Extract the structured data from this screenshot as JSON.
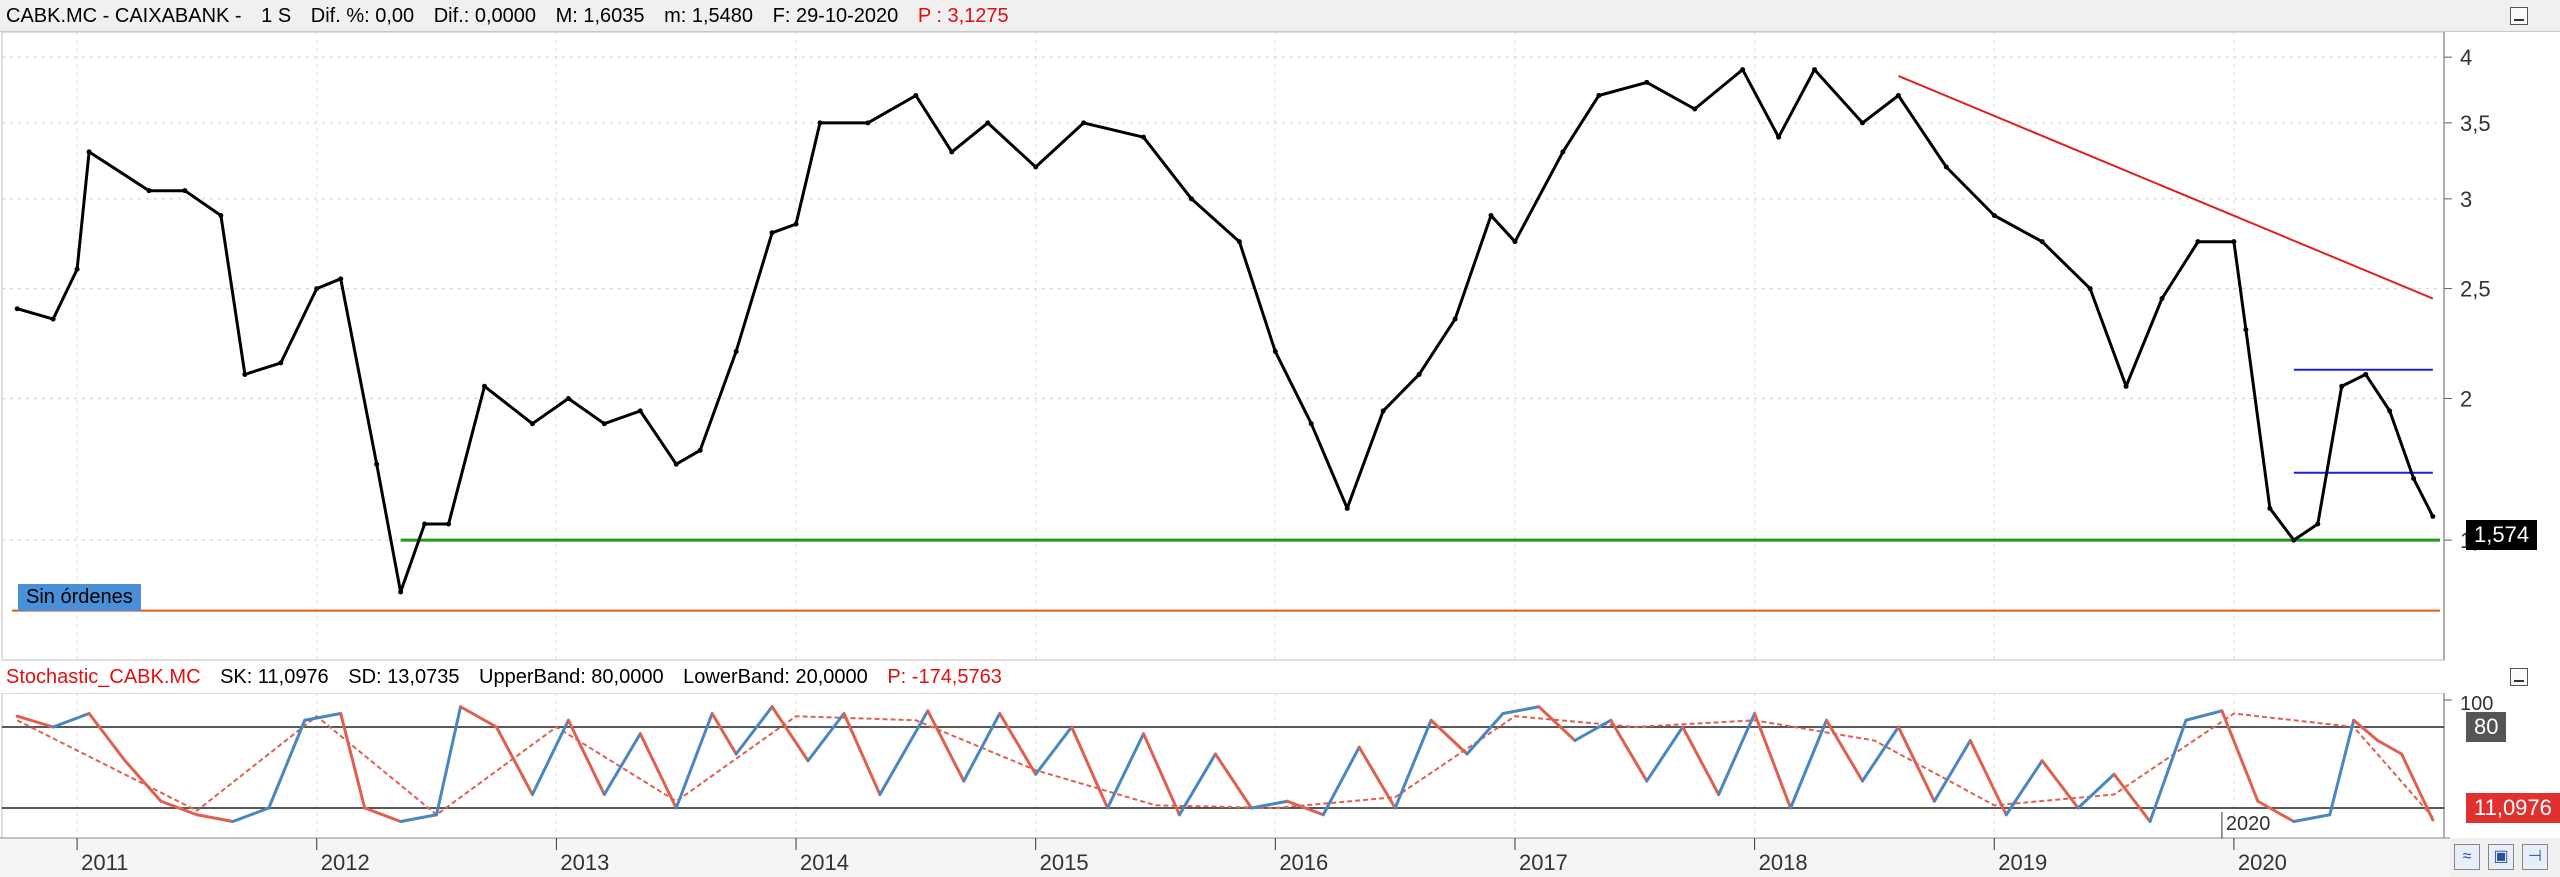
{
  "price_header": {
    "symbol": "CABK.MC - CAIXABANK -",
    "period": "1 S",
    "dif_pct": "Dif. %: 0,00",
    "dif": "Dif.: 0,0000",
    "max": "M: 1,6035",
    "min": "m: 1,5480",
    "date": "F: 29-10-2020",
    "pos": "P : 3,1275"
  },
  "stoch_header": {
    "name": "Stochastic_CABK.MC",
    "sk": "SK: 11,0976",
    "sd": "SD: 13,0735",
    "upper": "UpperBand: 80,0000",
    "lower": "LowerBand: 20,0000",
    "pos": "P: -174,5763"
  },
  "orders_label": "Sin órdenes",
  "last_price_tag": "1,574",
  "stoch_upper_tag": "80",
  "stoch_last_tag": "11,0976",
  "stoch_marker_label": "2020",
  "colors": {
    "price": "#000000",
    "trendline": "#e02020",
    "support": "#1a9a1a",
    "lower_line": "#e05a1a",
    "range_lines": "#2020d0",
    "sk_up": "#4a86c0",
    "sk_down": "#e06050",
    "tag_bg": "#000000",
    "stoch_tag_bg": "#e03030"
  },
  "chart_data": [
    {
      "type": "line",
      "title": "CABK.MC - CAIXABANK",
      "ylim": [
        1.2,
        4.1
      ],
      "y_scale": "log",
      "yticks": [
        "4",
        "3,5",
        "3",
        "2,5",
        "2",
        "1,5"
      ],
      "x_ticks": [
        "2011",
        "2012",
        "2013",
        "2014",
        "2015",
        "2016",
        "2017",
        "2018",
        "2019",
        "2020"
      ],
      "series": [
        {
          "name": "CABK.MC",
          "x": [
            2010.75,
            2010.9,
            2011.0,
            2011.05,
            2011.3,
            2011.45,
            2011.6,
            2011.7,
            2011.85,
            2012.0,
            2012.1,
            2012.25,
            2012.35,
            2012.45,
            2012.55,
            2012.7,
            2012.9,
            2013.05,
            2013.2,
            2013.35,
            2013.5,
            2013.6,
            2013.75,
            2013.9,
            2014.0,
            2014.1,
            2014.3,
            2014.5,
            2014.65,
            2014.8,
            2015.0,
            2015.2,
            2015.45,
            2015.65,
            2015.85,
            2016.0,
            2016.15,
            2016.3,
            2016.45,
            2016.6,
            2016.75,
            2016.9,
            2017.0,
            2017.2,
            2017.35,
            2017.55,
            2017.75,
            2017.95,
            2018.1,
            2018.25,
            2018.45,
            2018.6,
            2018.8,
            2019.0,
            2019.2,
            2019.4,
            2019.55,
            2019.7,
            2019.85,
            2020.0,
            2020.05,
            2020.15,
            2020.25,
            2020.35,
            2020.45,
            2020.55,
            2020.65,
            2020.75,
            2020.83
          ],
          "values": [
            2.4,
            2.35,
            2.6,
            3.3,
            3.05,
            3.05,
            2.9,
            2.1,
            2.15,
            2.5,
            2.55,
            1.75,
            1.35,
            1.55,
            1.55,
            2.05,
            1.9,
            2.0,
            1.9,
            1.95,
            1.75,
            1.8,
            2.2,
            2.8,
            2.85,
            3.5,
            3.5,
            3.7,
            3.3,
            3.5,
            3.2,
            3.5,
            3.4,
            3.0,
            2.75,
            2.2,
            1.9,
            1.6,
            1.95,
            2.1,
            2.35,
            2.9,
            2.75,
            3.3,
            3.7,
            3.8,
            3.6,
            3.9,
            3.4,
            3.9,
            3.5,
            3.7,
            3.2,
            2.9,
            2.75,
            2.5,
            2.05,
            2.45,
            2.75,
            2.75,
            2.3,
            1.6,
            1.5,
            1.55,
            2.05,
            2.1,
            1.95,
            1.7,
            1.574
          ]
        }
      ],
      "trendline": {
        "x": [
          2018.6,
          2020.83
        ],
        "values": [
          3.85,
          2.45
        ]
      },
      "support_level": 1.5,
      "lower_level": 1.3,
      "range_levels": {
        "x": [
          2020.25,
          2020.83
        ],
        "values": [
          2.12,
          1.72
        ]
      }
    },
    {
      "type": "line",
      "title": "Stochastic_CABK.MC",
      "ylim": [
        0,
        100
      ],
      "upper_band": 80,
      "lower_band": 20,
      "series": [
        {
          "name": "SK",
          "x": [
            2010.75,
            2010.9,
            2011.05,
            2011.2,
            2011.35,
            2011.5,
            2011.65,
            2011.8,
            2011.95,
            2012.1,
            2012.2,
            2012.35,
            2012.5,
            2012.6,
            2012.75,
            2012.9,
            2013.05,
            2013.2,
            2013.35,
            2013.5,
            2013.65,
            2013.75,
            2013.9,
            2014.05,
            2014.2,
            2014.35,
            2014.55,
            2014.7,
            2014.85,
            2015.0,
            2015.15,
            2015.3,
            2015.45,
            2015.6,
            2015.75,
            2015.9,
            2016.05,
            2016.2,
            2016.35,
            2016.5,
            2016.65,
            2016.8,
            2016.95,
            2017.1,
            2017.25,
            2017.4,
            2017.55,
            2017.7,
            2017.85,
            2018.0,
            2018.15,
            2018.3,
            2018.45,
            2018.6,
            2018.75,
            2018.9,
            2019.05,
            2019.2,
            2019.35,
            2019.5,
            2019.65,
            2019.8,
            2019.95,
            2020.1,
            2020.25,
            2020.4,
            2020.5,
            2020.6,
            2020.7,
            2020.83
          ],
          "values": [
            88,
            80,
            90,
            55,
            25,
            15,
            10,
            20,
            85,
            90,
            20,
            10,
            15,
            95,
            80,
            30,
            85,
            30,
            75,
            20,
            90,
            60,
            95,
            55,
            90,
            30,
            92,
            40,
            90,
            45,
            80,
            20,
            75,
            15,
            60,
            20,
            25,
            15,
            65,
            20,
            85,
            60,
            90,
            95,
            70,
            85,
            40,
            80,
            30,
            90,
            20,
            85,
            40,
            80,
            25,
            70,
            15,
            55,
            20,
            45,
            10,
            85,
            92,
            25,
            10,
            15,
            85,
            70,
            60,
            11.1
          ]
        },
        {
          "name": "SD",
          "x": [
            2010.75,
            2011.5,
            2012.0,
            2012.5,
            2013.0,
            2013.5,
            2014.0,
            2014.5,
            2015.0,
            2015.5,
            2016.0,
            2016.5,
            2017.0,
            2017.5,
            2018.0,
            2018.5,
            2019.0,
            2019.5,
            2020.0,
            2020.5,
            2020.83
          ],
          "values": [
            85,
            18,
            88,
            15,
            80,
            25,
            88,
            85,
            48,
            22,
            20,
            28,
            88,
            80,
            85,
            70,
            22,
            30,
            90,
            80,
            13.1
          ]
        }
      ],
      "marker_year": "2020"
    }
  ]
}
